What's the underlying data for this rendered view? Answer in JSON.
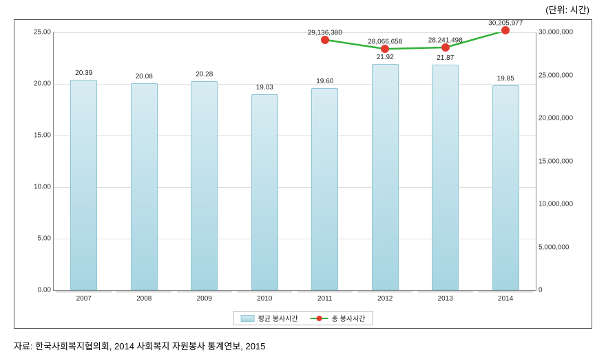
{
  "unit_label": "(단위: 시간)",
  "source_text": "자료: 한국사회복지협의회, 2014 사회복지 자원봉사 통계연보, 2015",
  "chart": {
    "type": "bar+line",
    "categories": [
      "2007",
      "2008",
      "2009",
      "2010",
      "2011",
      "2012",
      "2013",
      "2014"
    ],
    "bars": {
      "label": "평균 봉사시간",
      "values": [
        20.39,
        20.08,
        20.28,
        19.03,
        19.6,
        21.92,
        21.87,
        19.85
      ],
      "value_labels": [
        "20.39",
        "20.08",
        "20.28",
        "19.03",
        "19.60",
        "21.92",
        "21.87",
        "19.85"
      ],
      "fill_top": "#d8ecf2",
      "fill_bottom": "#a7d5e2",
      "border": "#8fc6d6",
      "width_frac": 0.45
    },
    "line": {
      "label": "총 봉사시간",
      "points": [
        {
          "cat": "2011",
          "value": 29136380,
          "label": "29,136,380"
        },
        {
          "cat": "2012",
          "value": 28066658,
          "label": "28,066,658"
        },
        {
          "cat": "2013",
          "value": 28241498,
          "label": "28,241,498"
        },
        {
          "cat": "2014",
          "value": 30205977,
          "label": "30,205,977"
        }
      ],
      "stroke": "#2eb135",
      "stroke_width": 2.5,
      "marker_fill": "#e23b2e",
      "marker_size": 12
    },
    "y_left": {
      "min": 0,
      "max": 25,
      "step": 5,
      "tick_labels": [
        "0.00",
        "5.00",
        "10.00",
        "15.00",
        "20.00",
        "25.00"
      ]
    },
    "y_right": {
      "min": 0,
      "max": 30000000,
      "step": 5000000,
      "tick_labels": [
        "0",
        "5,000,000",
        "10,000,000",
        "15,000,000",
        "20,000,000",
        "25,000,000",
        "30,000,000"
      ]
    },
    "colors": {
      "grid": "#dddddd",
      "axis": "#888888",
      "text": "#222222",
      "bg": "#ffffff"
    }
  }
}
